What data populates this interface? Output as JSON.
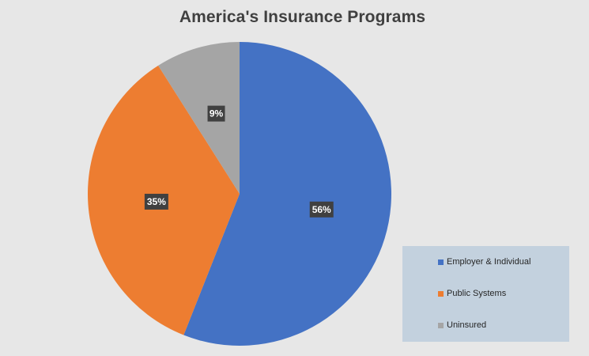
{
  "chart_data": {
    "type": "pie",
    "title": "America's Insurance Programs",
    "categories": [
      "Employer & Individual",
      "Public Systems",
      "Uninsured"
    ],
    "values": [
      56,
      35,
      9
    ],
    "data_labels": [
      "56%",
      "35%",
      "9%"
    ],
    "colors": [
      "#4472c4",
      "#ed7d31",
      "#a5a5a5"
    ],
    "legend_position": "bottom-right"
  }
}
